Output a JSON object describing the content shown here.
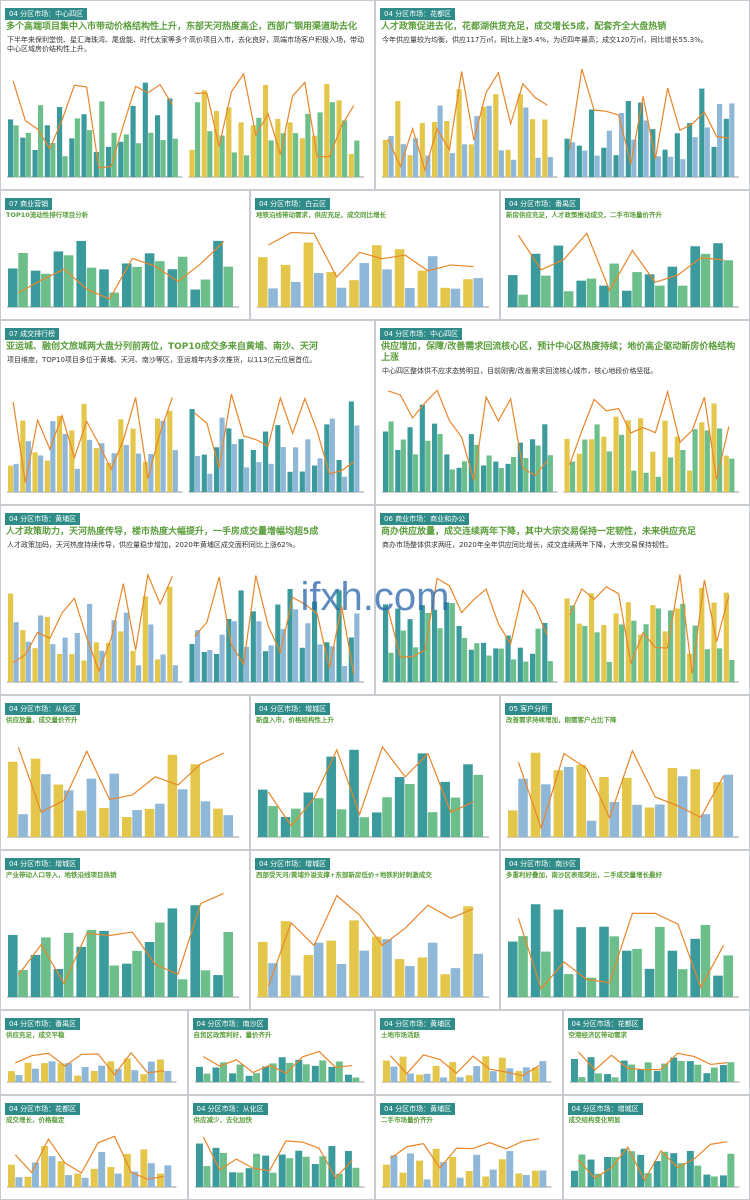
{
  "watermark": "ifxh.com",
  "slides": [
    {
      "section": "04 分区市场：中心四区",
      "title": "多个高端项目集中入市带动价格结构性上升，东部天河热度高企，西部广钢用渠道助去化",
      "body": "下半年来保利堂悦、星汇海珠湾、尾盘能、时代太家等多个高价项目入市，去化良好，高端市场客户积极入场，带动中心区域房价结构性上升。"
    },
    {
      "section": "04 分区市场：花都区",
      "title": "人才政策促进去化，花都湖供货充足，成交增长5成，配套齐全大盘热销",
      "body": "今年供应量较为均衡，供应117万㎡，同比上涨5.4%，为近四年最高；成交120万㎡，同比增长55.3%。"
    },
    {
      "section": "07 商业营销",
      "title": "TOP10流动性排行项目分析"
    },
    {
      "section": "04 分区市场：白云区",
      "title": "地铁沿线带动需求，供应充足，成交同比增长"
    },
    {
      "section": "04 分区市场：番禺区",
      "title": "新房供应充足，人才政策推动成交，二手市场量价齐升"
    },
    {
      "section": "07 成交排行榜",
      "title": "亚运城、融创文旅城两大盘分列前两位，TOP10成交多来自黄埔、南沙、天河",
      "body": "项目维度，TOP10项目多位于黄埔、天河、南沙等区，亚运城年内多次推货，以113亿元位居首位。"
    },
    {
      "section": "04 分区市场：中心四区",
      "title": "供应增加，保障/改善需求回流核心区，预计中心区热度持续；地价高企驱动新房价格结构上涨",
      "body": "中心四区整体供不应求态势明显，目前刚需/改善需求回流核心城市，核心地段价格坚挺。"
    },
    {
      "section": "04 分区市场：黄埔区",
      "title": "人才政策助力，天河热度传导，楼市热度大幅提升，一手房成交量增幅均超5成",
      "body": "人才政策加码，天河热度持续传导，供应量稳步增加，2020年黄埔区成交面积同比上涨62%。"
    },
    {
      "section": "06 商业市场：商业和办公",
      "title": "商办供应放量，成交连续两年下降，其中大宗交易保持一定韧性，未来供应充足",
      "body": "商办市场整体供求两旺，2020年全年供应同比增长，成交连续两年下降，大宗交易保持韧性。"
    },
    {
      "section": "04 分区市场：从化区",
      "title": "供应放量，成交量价齐升"
    },
    {
      "section": "04 分区市场：增城区",
      "title": "新盘入市，价格结构性上升"
    },
    {
      "section": "05 客户分析",
      "title": "改善需求持续增加，刚需客户占比下降"
    },
    {
      "section": "04 分区市场：增城区",
      "title": "产业带动人口导入，地铁沿线项目热销"
    },
    {
      "section": "04 分区市场：增城区",
      "title": "西部受天河/黄埔外溢支撑+东部新房低价+地铁利好刺激成交"
    },
    {
      "section": "04 分区市场：南沙区",
      "title": "多重利好叠加，南沙区表现突出，二手成交量增长最好"
    },
    {
      "section": "04 分区市场：番禺区",
      "title": "供应充足，成交平稳"
    },
    {
      "section": "04 分区市场：南沙区",
      "title": "自贸区政策利好，量价齐升"
    },
    {
      "section": "04 分区市场：黄埔区",
      "title": "土地市场活跃"
    },
    {
      "section": "04 分区市场：花都区",
      "title": "空港经济区带动需求"
    },
    {
      "section": "04 分区市场：花都区",
      "title": "成交增长，价格稳定"
    },
    {
      "section": "04 分区市场：从化区",
      "title": "供应减少，去化加快"
    },
    {
      "section": "04 分区市场：黄埔区",
      "title": "二手市场量价齐升"
    },
    {
      "section": "04 分区市场：增城区",
      "title": "成交结构变化明显"
    }
  ]
}
